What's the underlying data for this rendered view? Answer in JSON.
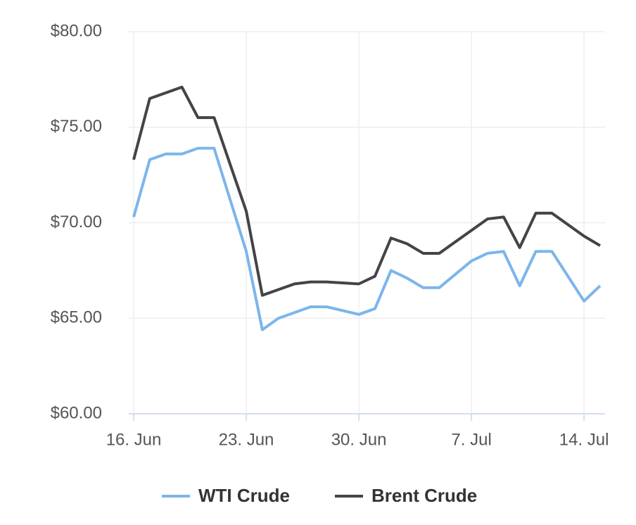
{
  "chart_data": {
    "type": "line",
    "x": [
      "06-16",
      "06-17",
      "06-18",
      "06-19",
      "06-20",
      "06-21",
      "06-23",
      "06-24",
      "06-25",
      "06-26",
      "06-27",
      "06-28",
      "06-30",
      "07-01",
      "07-02",
      "07-03",
      "07-04",
      "07-05",
      "07-07",
      "07-08",
      "07-09",
      "07-10",
      "07-11",
      "07-12",
      "07-14",
      "07-15"
    ],
    "series": [
      {
        "name": "WTI Crude",
        "color": "#7cb5ec",
        "values": [
          70.3,
          73.3,
          73.6,
          73.6,
          73.9,
          73.9,
          68.5,
          64.4,
          65.0,
          65.3,
          65.6,
          65.6,
          65.2,
          65.5,
          67.5,
          67.1,
          66.6,
          66.6,
          68.0,
          68.4,
          68.5,
          66.7,
          68.5,
          68.5,
          65.9,
          66.7
        ]
      },
      {
        "name": "Brent Crude",
        "color": "#434348",
        "values": [
          73.3,
          76.5,
          76.8,
          77.1,
          75.5,
          75.5,
          70.6,
          66.2,
          66.5,
          66.8,
          66.9,
          66.9,
          66.8,
          67.2,
          69.2,
          68.9,
          68.4,
          68.4,
          69.6,
          70.2,
          70.3,
          68.7,
          70.5,
          70.5,
          69.3,
          68.8
        ]
      }
    ],
    "xlim": [
      "06-16",
      "07-15"
    ],
    "xticks": [
      {
        "value": "06-16",
        "label": "16. Jun"
      },
      {
        "value": "06-23",
        "label": "23. Jun"
      },
      {
        "value": "06-30",
        "label": "30. Jun"
      },
      {
        "value": "07-07",
        "label": "7. Jul"
      },
      {
        "value": "07-14",
        "label": "14. Jul"
      }
    ],
    "ylim": [
      60,
      80
    ],
    "yticks": [
      {
        "value": 60,
        "label": "$60.00"
      },
      {
        "value": 65,
        "label": "$65.00"
      },
      {
        "value": 70,
        "label": "$70.00"
      },
      {
        "value": 75,
        "label": "$75.00"
      },
      {
        "value": 80,
        "label": "$80.00"
      }
    ],
    "grid": true,
    "legend": "bottom"
  }
}
